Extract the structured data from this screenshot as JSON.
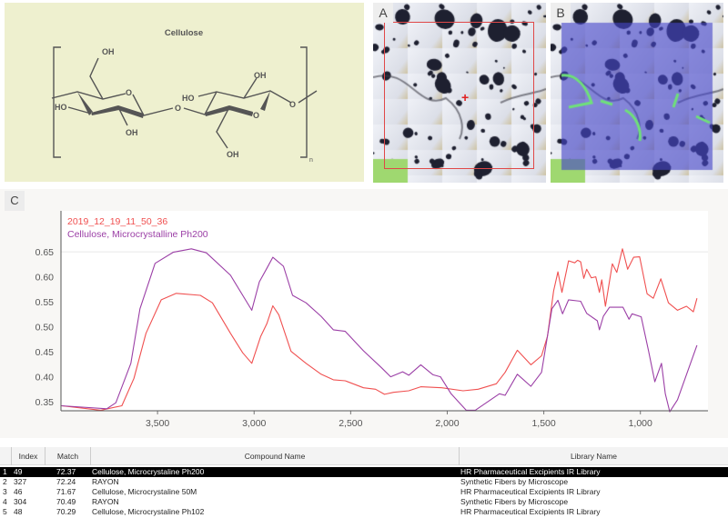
{
  "molecule": {
    "title": "Cellulose",
    "labels": {
      "oh": "OH",
      "ho": "HO",
      "o": "O",
      "n": "n"
    }
  },
  "panels": {
    "a": "A",
    "b": "B",
    "c": "C"
  },
  "chart_data": {
    "type": "line",
    "xlabel": "",
    "ylabel": "",
    "xlim": [
      4000,
      650
    ],
    "ylim": [
      0.332,
      0.732
    ],
    "x_ticks": [
      3500,
      3000,
      2500,
      2000,
      1500,
      1000
    ],
    "x_tick_labels": [
      "3,500",
      "3,000",
      "2,500",
      "2,000",
      "1,500",
      "1,000"
    ],
    "y_ticks": [
      0.35,
      0.4,
      0.45,
      0.5,
      0.55,
      0.6,
      0.65
    ],
    "y_tick_labels": [
      "0.35",
      "0.40",
      "0.45",
      "0.50",
      "0.55",
      "0.60",
      "0.65"
    ],
    "legend_placement": "top-left",
    "series": [
      {
        "name": "2019_12_19_11_50_36",
        "color": "#f05050",
        "points": [
          [
            3997,
            0.342
          ],
          [
            3794,
            0.333
          ],
          [
            3685,
            0.342
          ],
          [
            3622,
            0.397
          ],
          [
            3560,
            0.487
          ],
          [
            3481,
            0.554
          ],
          [
            3403,
            0.567
          ],
          [
            3278,
            0.563
          ],
          [
            3216,
            0.548
          ],
          [
            3122,
            0.487
          ],
          [
            3059,
            0.448
          ],
          [
            3012,
            0.427
          ],
          [
            2966,
            0.481
          ],
          [
            2934,
            0.506
          ],
          [
            2903,
            0.542
          ],
          [
            2872,
            0.524
          ],
          [
            2809,
            0.451
          ],
          [
            2731,
            0.427
          ],
          [
            2653,
            0.405
          ],
          [
            2590,
            0.394
          ],
          [
            2528,
            0.392
          ],
          [
            2434,
            0.378
          ],
          [
            2371,
            0.375
          ],
          [
            2325,
            0.365
          ],
          [
            2278,
            0.369
          ],
          [
            2199,
            0.372
          ],
          [
            2137,
            0.38
          ],
          [
            2028,
            0.378
          ],
          [
            1918,
            0.372
          ],
          [
            1840,
            0.375
          ],
          [
            1746,
            0.386
          ],
          [
            1700,
            0.409
          ],
          [
            1637,
            0.453
          ],
          [
            1567,
            0.424
          ],
          [
            1512,
            0.442
          ],
          [
            1481,
            0.481
          ],
          [
            1449,
            0.572
          ],
          [
            1427,
            0.61
          ],
          [
            1406,
            0.569
          ],
          [
            1372,
            0.632
          ],
          [
            1340,
            0.628
          ],
          [
            1325,
            0.633
          ],
          [
            1309,
            0.63
          ],
          [
            1293,
            0.597
          ],
          [
            1278,
            0.615
          ],
          [
            1254,
            0.598
          ],
          [
            1231,
            0.6
          ],
          [
            1212,
            0.569
          ],
          [
            1200,
            0.594
          ],
          [
            1181,
            0.541
          ],
          [
            1145,
            0.626
          ],
          [
            1122,
            0.609
          ],
          [
            1093,
            0.656
          ],
          [
            1066,
            0.615
          ],
          [
            1035,
            0.639
          ],
          [
            1004,
            0.64
          ],
          [
            965,
            0.566
          ],
          [
            933,
            0.557
          ],
          [
            894,
            0.596
          ],
          [
            855,
            0.548
          ],
          [
            808,
            0.533
          ],
          [
            761,
            0.541
          ],
          [
            726,
            0.53
          ],
          [
            707,
            0.557
          ]
        ]
      },
      {
        "name": "Cellulose, Microcrystalline Ph200",
        "color": "#9b3fa6",
        "points": [
          [
            3997,
            0.342
          ],
          [
            3763,
            0.336
          ],
          [
            3716,
            0.348
          ],
          [
            3638,
            0.427
          ],
          [
            3591,
            0.536
          ],
          [
            3513,
            0.627
          ],
          [
            3419,
            0.649
          ],
          [
            3325,
            0.656
          ],
          [
            3247,
            0.648
          ],
          [
            3122,
            0.603
          ],
          [
            3012,
            0.533
          ],
          [
            2973,
            0.59
          ],
          [
            2934,
            0.617
          ],
          [
            2903,
            0.639
          ],
          [
            2848,
            0.621
          ],
          [
            2801,
            0.563
          ],
          [
            2731,
            0.548
          ],
          [
            2653,
            0.521
          ],
          [
            2590,
            0.494
          ],
          [
            2528,
            0.491
          ],
          [
            2434,
            0.452
          ],
          [
            2340,
            0.418
          ],
          [
            2293,
            0.4
          ],
          [
            2231,
            0.41
          ],
          [
            2199,
            0.403
          ],
          [
            2137,
            0.424
          ],
          [
            2074,
            0.404
          ],
          [
            2035,
            0.4
          ],
          [
            1980,
            0.366
          ],
          [
            1902,
            0.333
          ],
          [
            1855,
            0.333
          ],
          [
            1730,
            0.366
          ],
          [
            1700,
            0.363
          ],
          [
            1637,
            0.405
          ],
          [
            1567,
            0.381
          ],
          [
            1512,
            0.409
          ],
          [
            1458,
            0.536
          ],
          [
            1427,
            0.553
          ],
          [
            1403,
            0.526
          ],
          [
            1372,
            0.554
          ],
          [
            1309,
            0.551
          ],
          [
            1278,
            0.527
          ],
          [
            1223,
            0.512
          ],
          [
            1212,
            0.494
          ],
          [
            1192,
            0.521
          ],
          [
            1160,
            0.539
          ],
          [
            1090,
            0.539
          ],
          [
            1059,
            0.515
          ],
          [
            1043,
            0.526
          ],
          [
            996,
            0.52
          ],
          [
            957,
            0.451
          ],
          [
            925,
            0.39
          ],
          [
            891,
            0.427
          ],
          [
            871,
            0.366
          ],
          [
            848,
            0.33
          ],
          [
            808,
            0.354
          ],
          [
            707,
            0.463
          ]
        ]
      }
    ]
  },
  "table": {
    "headers": {
      "index": "Index",
      "match": "Match",
      "compound": "Compound Name",
      "library": "Library Name"
    },
    "rows": [
      {
        "n": "1",
        "index": "49",
        "match": "72.37",
        "compound": "Cellulose, Microcrystaline Ph200",
        "library": "HR Pharmaceutical Excipients IR Library",
        "selected": true
      },
      {
        "n": "2",
        "index": "327",
        "match": "72.24",
        "compound": "RAYON",
        "library": "Synthetic Fibers by Microscope"
      },
      {
        "n": "3",
        "index": "46",
        "match": "71.67",
        "compound": "Cellulose, Microcrystaline 50M",
        "library": "HR Pharmaceutical Excipients IR Library"
      },
      {
        "n": "4",
        "index": "304",
        "match": "70.49",
        "compound": "RAYON",
        "library": "Synthetic Fibers by Microscope"
      },
      {
        "n": "5",
        "index": "48",
        "match": "70.29",
        "compound": "Cellulose, Microcrystaline Ph102",
        "library": "HR Pharmaceutical Excipients IR Library"
      }
    ]
  }
}
